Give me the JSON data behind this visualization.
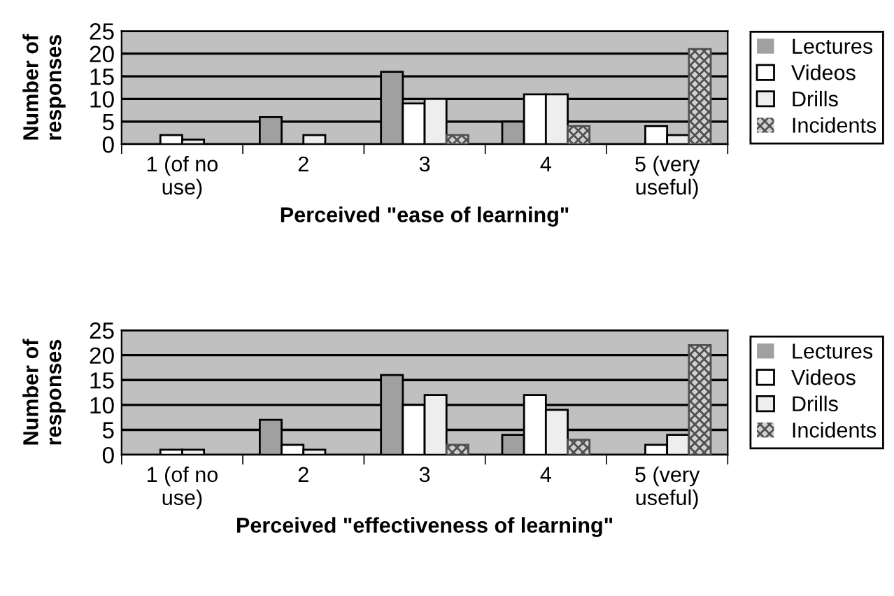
{
  "chart_data": [
    {
      "type": "bar",
      "xlabel": "Perceived \"ease of learning\"",
      "ylabel": "Number of\nresponses",
      "categories": [
        "1 (of no\nuse)",
        "2",
        "3",
        "4",
        "5 (very\nuseful)"
      ],
      "ylim": [
        0,
        25
      ],
      "yticks": [
        0,
        5,
        10,
        15,
        20,
        25
      ],
      "grid": "y",
      "legend": "right",
      "series": [
        {
          "name": "Lectures",
          "color": "#a0a0a0",
          "values": [
            0,
            6,
            16,
            5,
            0
          ]
        },
        {
          "name": "Videos",
          "color": "#ffffff",
          "values": [
            2,
            0,
            9,
            11,
            4
          ]
        },
        {
          "name": "Drills",
          "color": "#eeeeee",
          "values": [
            1,
            2,
            10,
            11,
            2
          ]
        },
        {
          "name": "Incidents",
          "color": "#505050",
          "values": [
            0,
            0,
            2,
            4,
            21
          ]
        }
      ]
    },
    {
      "type": "bar",
      "xlabel": "Perceived \"effectiveness of learning\"",
      "ylabel": "Number of\nresponses",
      "categories": [
        "1 (of no\nuse)",
        "2",
        "3",
        "4",
        "5 (very\nuseful)"
      ],
      "ylim": [
        0,
        25
      ],
      "yticks": [
        0,
        5,
        10,
        15,
        20,
        25
      ],
      "grid": "y",
      "legend": "right",
      "series": [
        {
          "name": "Lectures",
          "color": "#a0a0a0",
          "values": [
            0,
            7,
            16,
            4,
            0
          ]
        },
        {
          "name": "Videos",
          "color": "#ffffff",
          "values": [
            1,
            2,
            10,
            12,
            2
          ]
        },
        {
          "name": "Drills",
          "color": "#eeeeee",
          "values": [
            1,
            1,
            12,
            9,
            4
          ]
        },
        {
          "name": "Incidents",
          "color": "#505050",
          "values": [
            0,
            0,
            2,
            3,
            22
          ]
        }
      ]
    }
  ]
}
